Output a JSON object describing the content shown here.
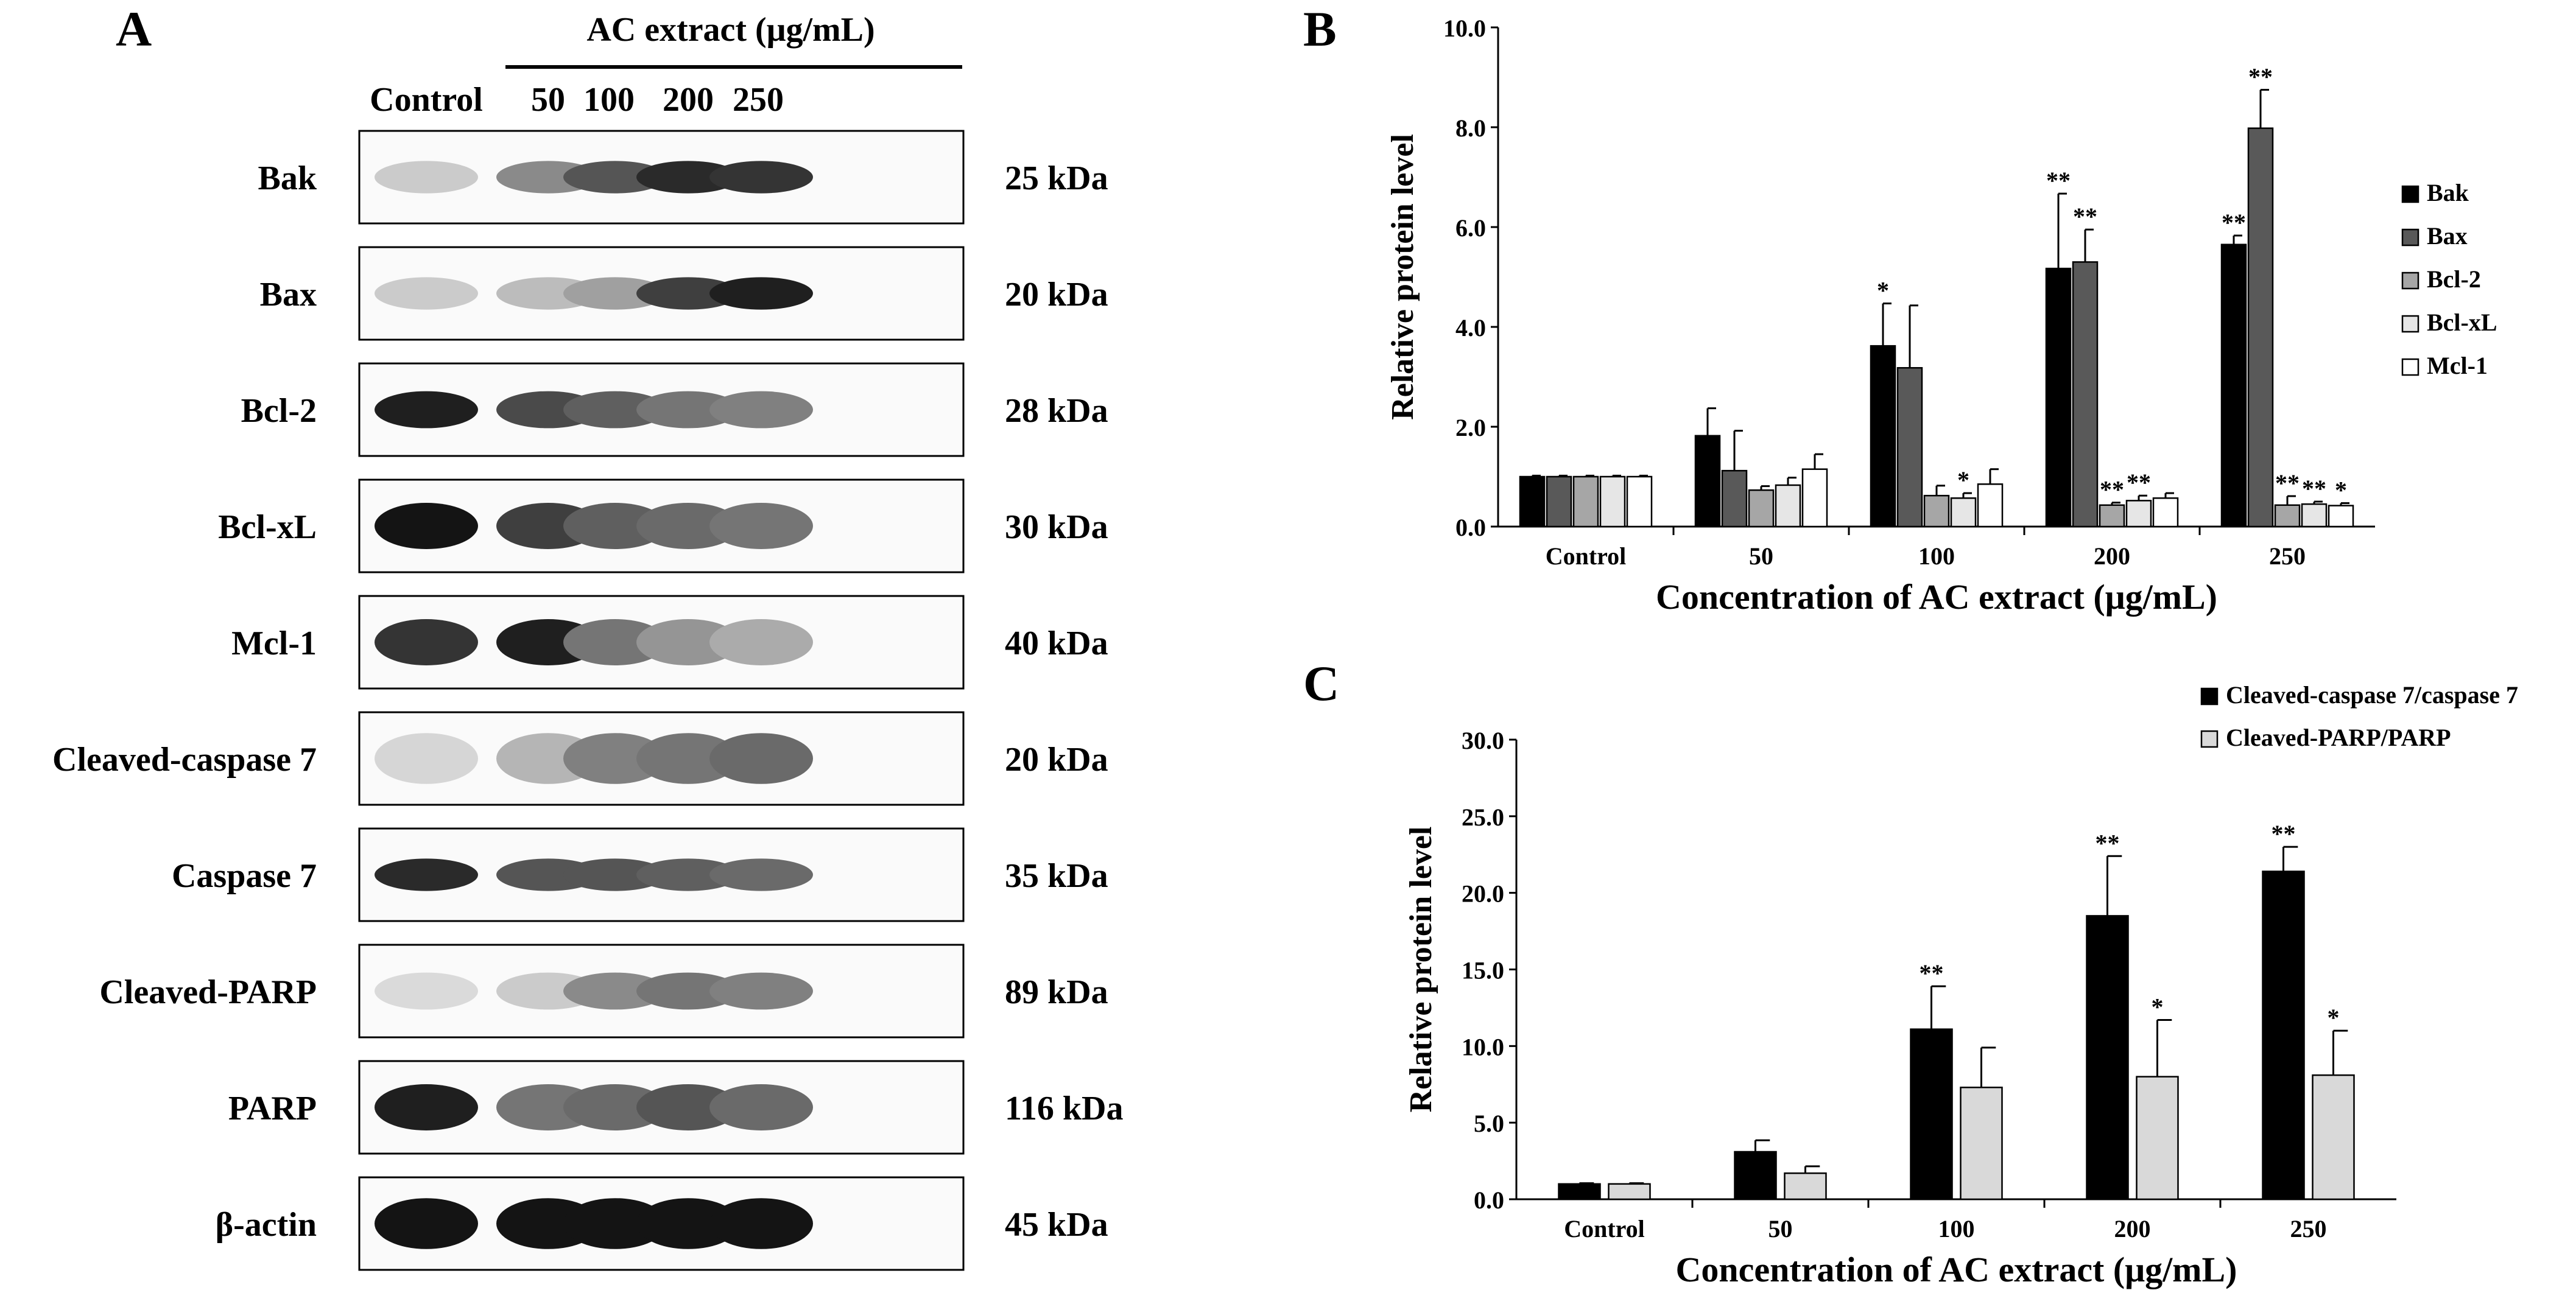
{
  "figure": {
    "panels": {
      "a": "A",
      "b": "B",
      "c": "C"
    }
  },
  "blot": {
    "header": "AC extract (μg/mL)",
    "lanes": [
      "Control",
      "50",
      "100",
      "200",
      "250"
    ],
    "rows": [
      {
        "protein": "Bak",
        "mw": "25 kDa",
        "intensity": [
          0.15,
          0.45,
          0.7,
          0.9,
          0.85
        ],
        "thickness": 0.35
      },
      {
        "protein": "Bax",
        "mw": "20 kDa",
        "intensity": [
          0.15,
          0.22,
          0.35,
          0.8,
          0.95
        ],
        "thickness": 0.35
      },
      {
        "protein": "Bcl-2",
        "mw": "28 kDa",
        "intensity": [
          0.95,
          0.75,
          0.65,
          0.55,
          0.5
        ],
        "thickness": 0.4
      },
      {
        "protein": "Bcl-xL",
        "mw": "30 kDa",
        "intensity": [
          1.0,
          0.8,
          0.65,
          0.6,
          0.55
        ],
        "thickness": 0.5
      },
      {
        "protein": "Mcl-1",
        "mw": "40 kDa",
        "intensity": [
          0.85,
          0.95,
          0.55,
          0.4,
          0.3
        ],
        "thickness": 0.5
      },
      {
        "protein": "Cleaved-caspase 7",
        "mw": "20 kDa",
        "intensity": [
          0.1,
          0.25,
          0.5,
          0.55,
          0.6
        ],
        "thickness": 0.55
      },
      {
        "protein": "Caspase 7",
        "mw": "35 kDa",
        "intensity": [
          0.9,
          0.7,
          0.7,
          0.65,
          0.6
        ],
        "thickness": 0.35
      },
      {
        "protein": "Cleaved-PARP",
        "mw": "89 kDa",
        "intensity": [
          0.08,
          0.15,
          0.45,
          0.55,
          0.5
        ],
        "thickness": 0.4
      },
      {
        "protein": "PARP",
        "mw": "116 kDa",
        "intensity": [
          0.95,
          0.55,
          0.6,
          0.7,
          0.6
        ],
        "thickness": 0.5
      },
      {
        "protein": "β-actin",
        "mw": "45 kDa",
        "intensity": [
          1.0,
          1.0,
          1.0,
          1.0,
          1.0
        ],
        "thickness": 0.55
      }
    ]
  },
  "chart_data": [
    {
      "panel": "B",
      "type": "bar",
      "xlabel": "Concentration of AC extract  (μg/mL)",
      "ylabel": "Relative protein level",
      "categories": [
        "Control",
        "50",
        "100",
        "200",
        "250"
      ],
      "ylim": [
        0,
        10
      ],
      "yticks": [
        "0.0",
        "2.0",
        "4.0",
        "6.0",
        "8.0",
        "10.0"
      ],
      "legend_position": "right",
      "grid": false,
      "series": [
        {
          "name": "Bak",
          "color": "#000000",
          "values": [
            1.0,
            1.82,
            3.62,
            5.17,
            5.65
          ],
          "errors": [
            0.02,
            0.55,
            0.85,
            1.5,
            0.18
          ],
          "sig": [
            "",
            "",
            "*",
            "**",
            "**"
          ]
        },
        {
          "name": "Bax",
          "color": "#595959",
          "values": [
            1.0,
            1.12,
            3.18,
            5.3,
            7.98
          ],
          "errors": [
            0.02,
            0.8,
            1.25,
            0.65,
            0.77
          ],
          "sig": [
            "",
            "",
            "",
            "**",
            "**"
          ]
        },
        {
          "name": "Bcl-2",
          "color": "#a6a6a6",
          "values": [
            1.0,
            0.73,
            0.62,
            0.43,
            0.43
          ],
          "errors": [
            0.02,
            0.08,
            0.2,
            0.05,
            0.18
          ],
          "sig": [
            "",
            "",
            "",
            "**",
            "**"
          ]
        },
        {
          "name": "Bcl-xL",
          "color": "#e6e6e6",
          "values": [
            1.0,
            0.83,
            0.57,
            0.52,
            0.45
          ],
          "errors": [
            0.02,
            0.15,
            0.1,
            0.1,
            0.05
          ],
          "sig": [
            "",
            "",
            "*",
            "**",
            "**"
          ]
        },
        {
          "name": "Mcl-1",
          "color": "#ffffff",
          "values": [
            1.0,
            1.15,
            0.85,
            0.57,
            0.42
          ],
          "errors": [
            0.02,
            0.3,
            0.3,
            0.1,
            0.05
          ],
          "sig": [
            "",
            "",
            "",
            "",
            "*"
          ]
        }
      ]
    },
    {
      "panel": "C",
      "type": "bar",
      "xlabel": "Concentration of AC extract  (μg/mL)",
      "ylabel": "Relative protein level",
      "categories": [
        "Control",
        "50",
        "100",
        "200",
        "250"
      ],
      "ylim": [
        0,
        30
      ],
      "yticks": [
        "0.0",
        "5.0",
        "10.0",
        "15.0",
        "20.0",
        "25.0",
        "30.0"
      ],
      "legend_position": "top-right",
      "grid": false,
      "series": [
        {
          "name": "Cleaved-caspase 7/caspase 7",
          "color": "#000000",
          "values": [
            1.0,
            3.1,
            11.1,
            18.5,
            21.4
          ],
          "errors": [
            0.05,
            0.75,
            2.8,
            3.9,
            1.6
          ],
          "sig": [
            "",
            "",
            "**",
            "**",
            "**"
          ]
        },
        {
          "name": "Cleaved-PARP/PARP",
          "color": "#d9d9d9",
          "values": [
            1.0,
            1.7,
            7.3,
            8.0,
            8.1
          ],
          "errors": [
            0.05,
            0.45,
            2.6,
            3.7,
            2.9
          ],
          "sig": [
            "",
            "",
            "",
            "*",
            "*"
          ]
        }
      ]
    }
  ]
}
